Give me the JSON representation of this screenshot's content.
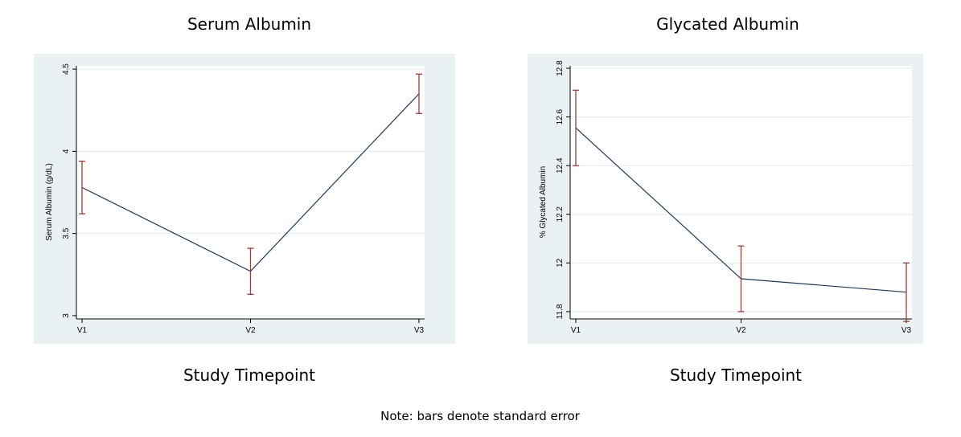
{
  "note": "Note: bars denote standard error",
  "colors": {
    "panel_bg": "#eaf1f3",
    "plot_bg": "#ffffff",
    "line": "#1c3a5c",
    "error_bar": "#a13b35",
    "grid": "#e4ebee"
  },
  "chart_data": [
    {
      "type": "line",
      "title": "Serum Albumin",
      "xlabel": "Study Timepoint",
      "ylabel": "Serum Albumin (g/dL)",
      "categories": [
        "V1",
        "V2",
        "V3"
      ],
      "values": [
        3.78,
        3.27,
        4.35
      ],
      "error": [
        0.16,
        0.14,
        0.12
      ],
      "ylim": [
        2.98,
        4.52
      ],
      "yticks": [
        3,
        3.5,
        4,
        4.5
      ],
      "ytick_labels": [
        "3",
        "3.5",
        "4",
        "4.5"
      ],
      "grid": true,
      "error_bars": "standard error"
    },
    {
      "type": "line",
      "title": "Glycated Albumin",
      "xlabel": "Study Timepoint",
      "ylabel": "% Glycated Albumin",
      "categories": [
        "V1",
        "V2",
        "V3"
      ],
      "values": [
        12.555,
        11.935,
        11.88
      ],
      "error": [
        0.155,
        0.135,
        0.12
      ],
      "ylim": [
        11.77,
        12.81
      ],
      "yticks": [
        11.8,
        12,
        12.2,
        12.4,
        12.6,
        12.8
      ],
      "ytick_labels": [
        "11.8",
        "12",
        "12.2",
        "12.4",
        "12.6",
        "12.8"
      ],
      "grid": true,
      "error_bars": "standard error"
    }
  ]
}
